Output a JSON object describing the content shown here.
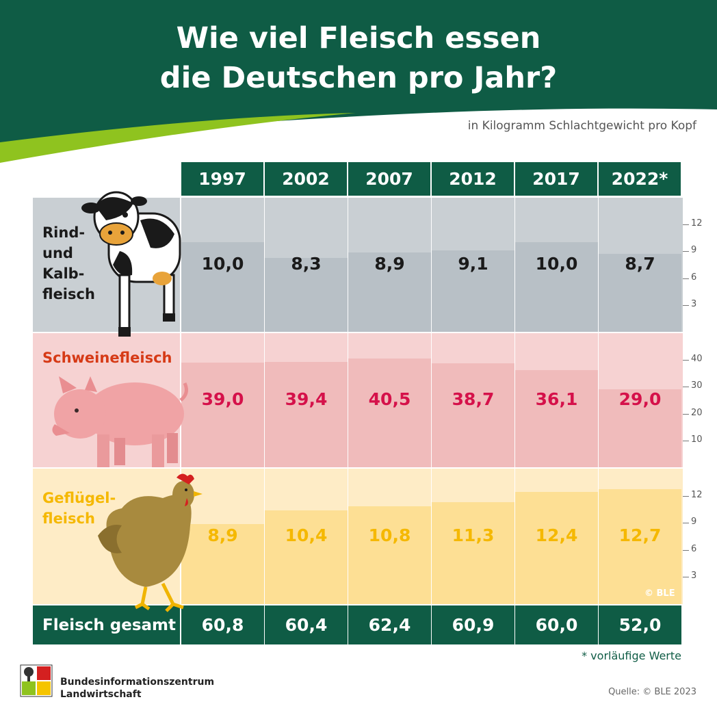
{
  "title_line1": "Wie viel Fleisch essen",
  "title_line2": "die Deutschen pro Jahr?",
  "subtitle": "in Kilogramm Schlachtgewicht pro Kopf",
  "footnote": "* vorläufige Werte",
  "source": "Quelle: © BLE 2023",
  "watermark": "© BLE",
  "logo": {
    "line1": "Bundesinformationszentrum",
    "line2": "Landwirtschaft"
  },
  "total_label": "Fleisch gesamt",
  "colors": {
    "header_green": "#0f5c45",
    "beef_bg": "#c9cfd3",
    "beef_bar": "#b8c0c6",
    "beef_text": "#1a1a1a",
    "pork_bg": "#f6d2d2",
    "pork_bar": "#f0bbbb",
    "pork_text": "#d5114a",
    "pork_label": "#d63a16",
    "poultry_bg": "#feecc6",
    "poultry_bar": "#fddf94",
    "poultry_text": "#f5b800"
  },
  "chart_data": {
    "type": "bar",
    "categories": [
      "1997",
      "2002",
      "2007",
      "2012",
      "2017",
      "2022*"
    ],
    "series": [
      {
        "name": "Rind- und Kalbfleisch",
        "label_lines": [
          "Rind-",
          "und",
          "Kalb-",
          "fleisch"
        ],
        "values": [
          10.0,
          8.3,
          8.9,
          9.1,
          10.0,
          8.7
        ],
        "labels": [
          "10,0",
          "8,3",
          "8,9",
          "9,1",
          "10,0",
          "8,7"
        ],
        "ylim": [
          0,
          15
        ],
        "ticks": [
          "3",
          "6",
          "9",
          "12"
        ],
        "tick_values": [
          3,
          6,
          9,
          12
        ]
      },
      {
        "name": "Schweinefleisch",
        "label_lines": [
          "Schweinefleisch"
        ],
        "values": [
          39.0,
          39.4,
          40.5,
          38.7,
          36.1,
          29.0
        ],
        "labels": [
          "39,0",
          "39,4",
          "40,5",
          "38,7",
          "36,1",
          "29,0"
        ],
        "ylim": [
          0,
          50
        ],
        "ticks": [
          "10",
          "20",
          "30",
          "40"
        ],
        "tick_values": [
          10,
          20,
          30,
          40
        ]
      },
      {
        "name": "Geflügelfleisch",
        "label_lines": [
          "Geflügel-",
          "fleisch"
        ],
        "values": [
          8.9,
          10.4,
          10.8,
          11.3,
          12.4,
          12.7
        ],
        "labels": [
          "8,9",
          "10,4",
          "10,8",
          "11,3",
          "12,4",
          "12,7"
        ],
        "ylim": [
          0,
          15
        ],
        "ticks": [
          "3",
          "6",
          "9",
          "12"
        ],
        "tick_values": [
          3,
          6,
          9,
          12
        ]
      }
    ],
    "totals": [
      "60,8",
      "60,4",
      "62,4",
      "60,9",
      "60,0",
      "52,0"
    ]
  }
}
